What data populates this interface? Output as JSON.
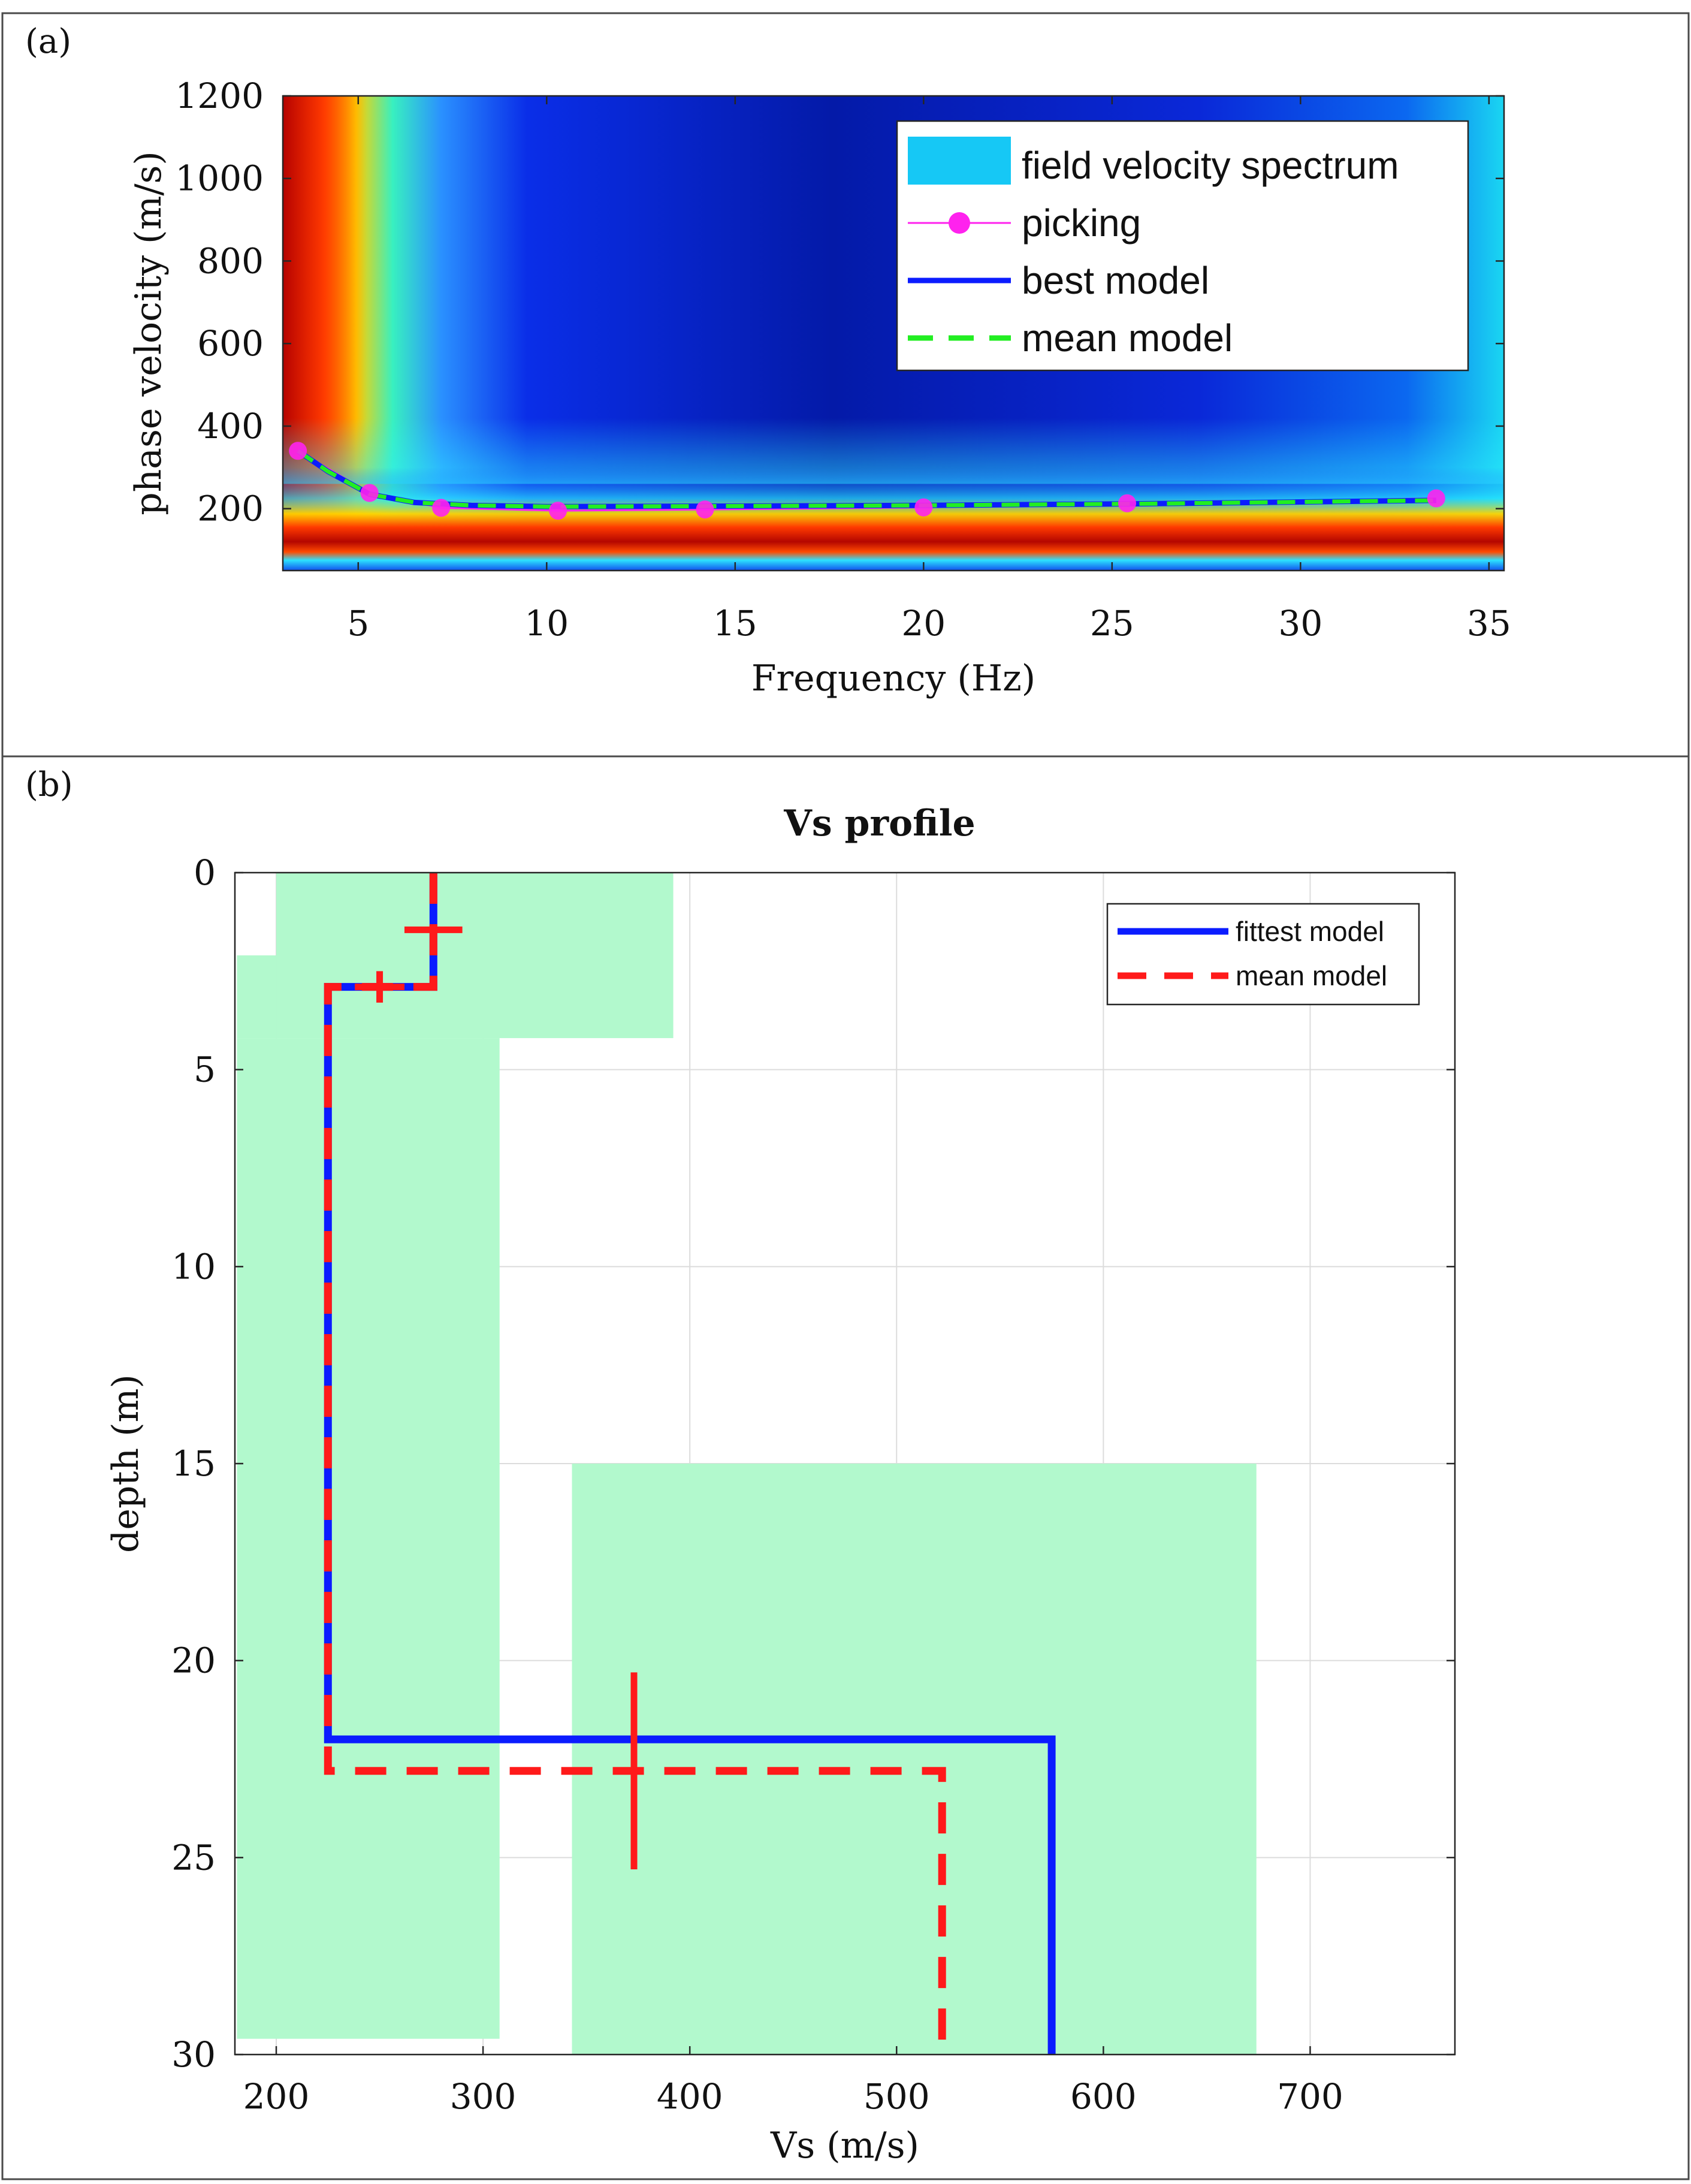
{
  "colors": {
    "panel_border": "#4a4a4a",
    "axis": "#262626",
    "grid": "#dcdcdc",
    "picking": "#ff22ee",
    "best_model": "#0b1cff",
    "mean_model_a": "#22ee22",
    "fittest_model": "#0b1cff",
    "mean_model_b": "#ff1a1a",
    "uncertainty_fill": "#b2f9cd",
    "spectrum_legend": "#16c8f5"
  },
  "panels": [
    {
      "label": "(a)"
    },
    {
      "label": "(b)"
    }
  ],
  "chart_data": [
    {
      "type": "line",
      "panel": "(a)",
      "title": "",
      "xlabel": "Frequency (Hz)",
      "ylabel": "phase velocity (m/s)",
      "xlim": [
        3,
        35.4
      ],
      "ylim": [
        50,
        1200
      ],
      "xticks": [
        5,
        10,
        15,
        20,
        25,
        30,
        35
      ],
      "yticks": [
        200,
        400,
        600,
        800,
        1000,
        1200
      ],
      "background": "field velocity spectrum (colormap image)",
      "legend_position": "top-right",
      "legend": [
        {
          "key": "spectrum",
          "label": "field velocity spectrum"
        },
        {
          "key": "picking",
          "label": "picking"
        },
        {
          "key": "best",
          "label": "best model"
        },
        {
          "key": "mean",
          "label": "mean model"
        }
      ],
      "series": [
        {
          "name": "picking",
          "x": [
            3.4,
            5.3,
            7.2,
            10.3,
            14.2,
            20.0,
            25.4,
            33.6
          ],
          "y": [
            340,
            238,
            202,
            195,
            198,
            203,
            213,
            225
          ]
        },
        {
          "name": "best model",
          "x": [
            3.4,
            4.2,
            5.3,
            6.5,
            8.0,
            10.0,
            14.0,
            20.0,
            26.0,
            33.6
          ],
          "y": [
            340,
            290,
            235,
            215,
            208,
            205,
            206,
            208,
            212,
            220
          ]
        },
        {
          "name": "mean model",
          "x": [
            3.4,
            4.2,
            5.3,
            6.5,
            8.0,
            10.0,
            14.0,
            20.0,
            26.0,
            33.6
          ],
          "y": [
            340,
            290,
            235,
            215,
            208,
            205,
            206,
            208,
            212,
            220
          ]
        }
      ]
    },
    {
      "type": "line",
      "panel": "(b)",
      "title": "Vs profile",
      "xlabel": "Vs (m/s)",
      "ylabel": "depth (m)",
      "xlim": [
        180,
        770
      ],
      "ylim": [
        0,
        30
      ],
      "y_reversed": true,
      "grid": true,
      "xticks": [
        200,
        300,
        400,
        500,
        600,
        700
      ],
      "yticks": [
        0,
        5,
        10,
        15,
        20,
        25,
        30
      ],
      "legend_position": "top-right",
      "legend": [
        {
          "key": "fittest",
          "label": "fittest model"
        },
        {
          "key": "mean",
          "label": "mean model"
        }
      ],
      "search_ranges": [
        {
          "vs": [
            200,
            392
          ],
          "depth": [
            0,
            4.2
          ]
        },
        {
          "vs": [
            181,
            200
          ],
          "depth": [
            2.1,
            4.2
          ]
        },
        {
          "vs": [
            181,
            308
          ],
          "depth": [
            4.2,
            29.6
          ]
        },
        {
          "vs": [
            343,
            674
          ],
          "depth": [
            15.0,
            30.0
          ]
        }
      ],
      "series": [
        {
          "name": "fittest model",
          "vs": [
            276,
            276,
            225,
            225,
            575,
            575
          ],
          "depth": [
            0,
            2.9,
            2.9,
            22.0,
            22.0,
            30.0
          ]
        },
        {
          "name": "mean model",
          "vs": [
            276,
            276,
            225,
            225,
            522,
            522
          ],
          "depth": [
            0,
            2.9,
            2.9,
            22.8,
            22.8,
            30.0
          ]
        }
      ],
      "error_bars": [
        {
          "vs": 276,
          "depth": 1.45,
          "vs_err": 14,
          "depth_err": 0
        },
        {
          "vs": 250,
          "depth": 2.9,
          "vs_err": 12,
          "depth_err": 0.4
        },
        {
          "vs": 373,
          "depth": 22.8,
          "vs_err": 0,
          "depth_err": 2.5
        }
      ]
    }
  ]
}
